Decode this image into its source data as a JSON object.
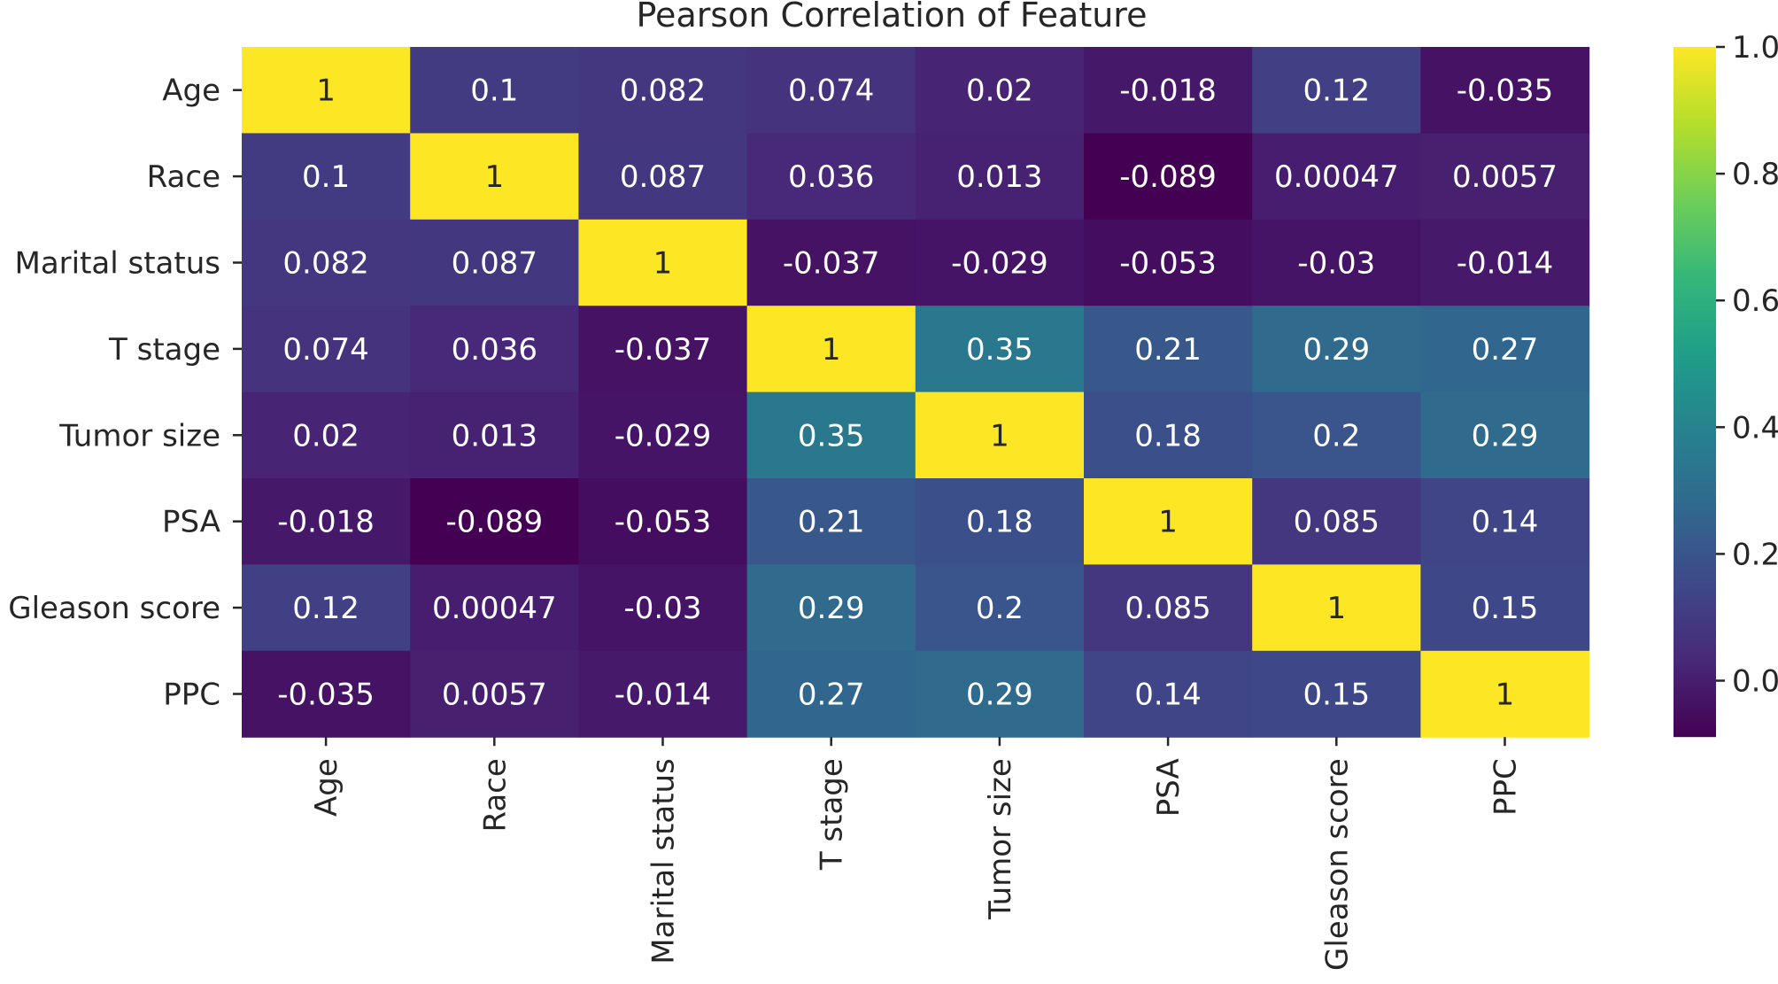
{
  "chart_data": {
    "type": "heatmap",
    "title": "Pearson Correlation of Feature",
    "xlabel": "",
    "ylabel": "",
    "rows": [
      "Age",
      "Race",
      "Marital status",
      "T stage",
      "Tumor size",
      "PSA",
      "Gleason score",
      "PPC"
    ],
    "columns": [
      "Age",
      "Race",
      "Marital status",
      "T stage",
      "Tumor size",
      "PSA",
      "Gleason score",
      "PPC"
    ],
    "values": [
      [
        1,
        0.1,
        0.082,
        0.074,
        0.02,
        -0.018,
        0.12,
        -0.035
      ],
      [
        0.1,
        1,
        0.087,
        0.036,
        0.013,
        -0.089,
        0.00047,
        0.0057
      ],
      [
        0.082,
        0.087,
        1,
        -0.037,
        -0.029,
        -0.053,
        -0.03,
        -0.014
      ],
      [
        0.074,
        0.036,
        -0.037,
        1,
        0.35,
        0.21,
        0.29,
        0.27
      ],
      [
        0.02,
        0.013,
        -0.029,
        0.35,
        1,
        0.18,
        0.2,
        0.29
      ],
      [
        -0.018,
        -0.089,
        -0.053,
        0.21,
        0.18,
        1,
        0.085,
        0.14
      ],
      [
        0.12,
        0.00047,
        -0.03,
        0.29,
        0.2,
        0.085,
        1,
        0.15
      ],
      [
        -0.035,
        0.0057,
        -0.014,
        0.27,
        0.29,
        0.14,
        0.15,
        1
      ]
    ],
    "cell_labels": [
      [
        "1",
        "0.1",
        "0.082",
        "0.074",
        "0.02",
        "-0.018",
        "0.12",
        "-0.035"
      ],
      [
        "0.1",
        "1",
        "0.087",
        "0.036",
        "0.013",
        "-0.089",
        "0.00047",
        "0.0057"
      ],
      [
        "0.082",
        "0.087",
        "1",
        "-0.037",
        "-0.029",
        "-0.053",
        "-0.03",
        "-0.014"
      ],
      [
        "0.074",
        "0.036",
        "-0.037",
        "1",
        "0.35",
        "0.21",
        "0.29",
        "0.27"
      ],
      [
        "0.02",
        "0.013",
        "-0.029",
        "0.35",
        "1",
        "0.18",
        "0.2",
        "0.29"
      ],
      [
        "-0.018",
        "-0.089",
        "-0.053",
        "0.21",
        "0.18",
        "1",
        "0.085",
        "0.14"
      ],
      [
        "0.12",
        "0.00047",
        "-0.03",
        "0.29",
        "0.2",
        "0.085",
        "1",
        "0.15"
      ],
      [
        "-0.035",
        "0.0057",
        "-0.014",
        "0.27",
        "0.29",
        "0.14",
        "0.15",
        "1"
      ]
    ],
    "colormap": "viridis",
    "colorbar": {
      "range": [
        -0.089,
        1.0
      ],
      "ticks": [
        0.0,
        0.2,
        0.4,
        0.6,
        0.8,
        1.0
      ],
      "tick_labels": [
        "0.0",
        "0.2",
        "0.4",
        "0.6",
        "0.8",
        "1.0"
      ],
      "placement": "right"
    },
    "colors": {
      "dark_text": "#262626",
      "light_text": "#ffffff",
      "viridis_stops": [
        "#440154",
        "#482878",
        "#3e4989",
        "#31688e",
        "#26828e",
        "#1f9e89",
        "#35b779",
        "#6ece58",
        "#b5de2b",
        "#fde725"
      ]
    }
  }
}
